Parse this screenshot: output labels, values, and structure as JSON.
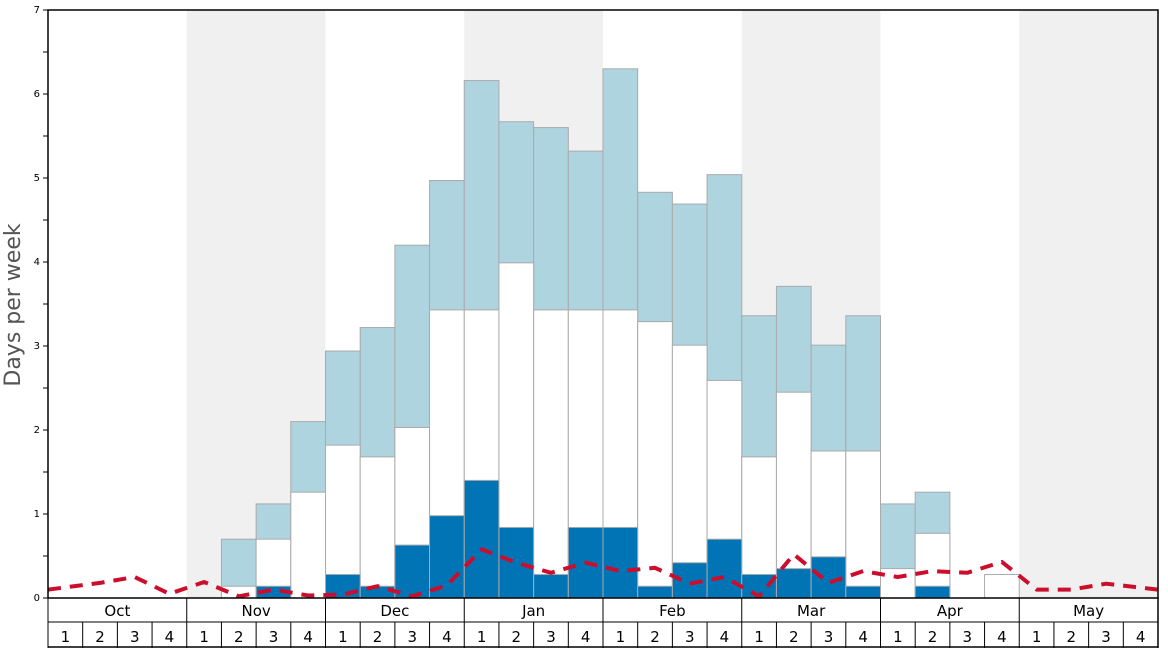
{
  "chart_data": {
    "type": "bar",
    "ylabel": "Days per week",
    "ylim": [
      0,
      7
    ],
    "yticks": [
      "0",
      "1",
      "2",
      "3",
      "4",
      "5",
      "6",
      "7"
    ],
    "months": [
      "Oct",
      "Nov",
      "Dec",
      "Jan",
      "Feb",
      "Mar",
      "Apr",
      "May"
    ],
    "weeks": [
      "1",
      "2",
      "3",
      "4"
    ],
    "colors": {
      "light": "#aed4e0",
      "white": "#ffffff",
      "dark": "#0074b5",
      "line": "#cc0e2c",
      "shade": "#f0f0f0",
      "border": "#aaaaaa"
    },
    "series": [
      {
        "values": [
          0,
          0,
          0,
          0,
          0,
          0.7,
          1.12,
          2.1,
          2.94,
          3.22,
          4.2,
          4.97,
          6.16,
          5.67,
          5.6,
          5.32,
          6.3,
          4.83,
          4.69,
          5.04,
          3.36,
          3.71,
          3.01,
          3.36,
          1.12,
          1.26,
          0,
          0,
          0,
          0,
          0,
          0
        ]
      },
      {
        "values": [
          0,
          0,
          0,
          0,
          0,
          0.14,
          0.7,
          1.26,
          1.82,
          1.68,
          2.03,
          3.43,
          3.43,
          3.99,
          3.43,
          3.43,
          3.43,
          3.29,
          3.01,
          2.59,
          1.68,
          2.45,
          1.75,
          1.75,
          0.35,
          0.77,
          0,
          0.28,
          0,
          0,
          0,
          0
        ]
      },
      {
        "values": [
          0,
          0,
          0,
          0,
          0,
          0,
          0.14,
          0,
          0.28,
          0.14,
          0.63,
          0.98,
          1.4,
          0.84,
          0.28,
          0.84,
          0.84,
          0.14,
          0.42,
          0.7,
          0.28,
          0.35,
          0.49,
          0.14,
          0,
          0.14,
          0,
          0,
          0,
          0,
          0,
          0
        ]
      },
      {
        "values": [
          0.1,
          0.18,
          0.25,
          0.05,
          0.19,
          0.02,
          0.1,
          0.03,
          0.04,
          0.14,
          0.02,
          0.15,
          0.58,
          0.42,
          0.3,
          0.42,
          0.32,
          0.36,
          0.17,
          0.25,
          0.02,
          0.52,
          0.18,
          0.32,
          0.25,
          0.32,
          0.3,
          0.43,
          0.1,
          0.1,
          0.17,
          0.1
        ]
      }
    ]
  }
}
